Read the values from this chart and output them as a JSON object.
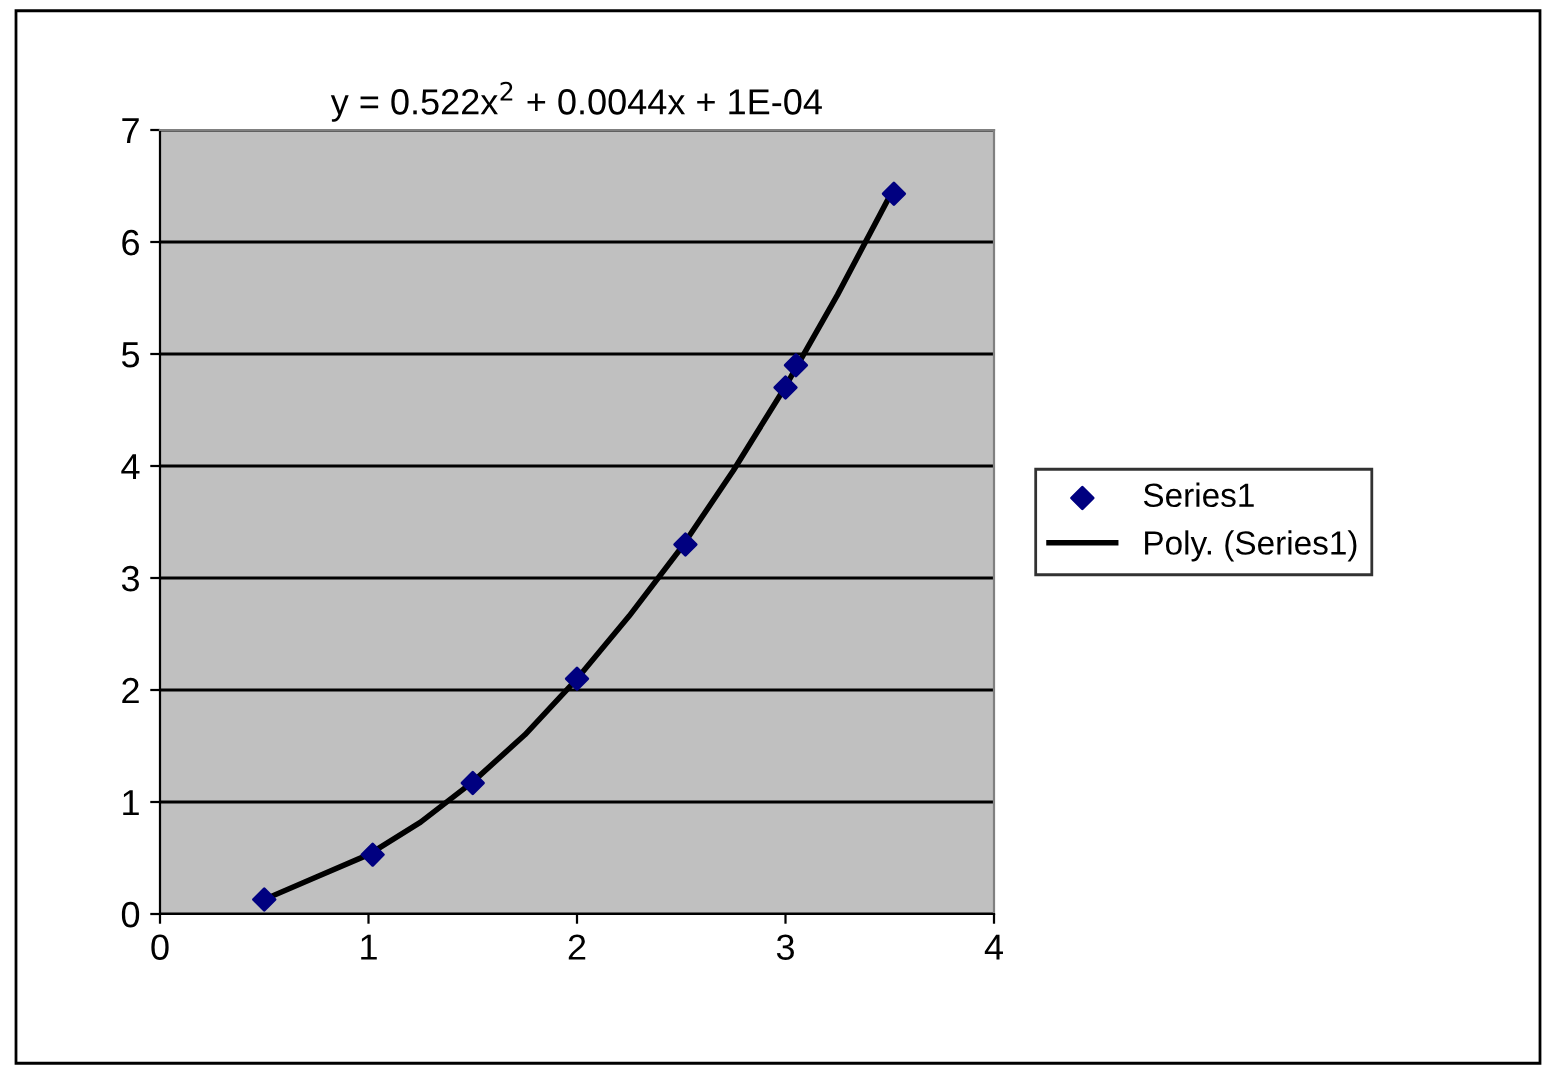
{
  "chart_data": {
    "type": "scatter",
    "annotations": [
      "y = 0.522x$^{2}$ + 0.0044x + 1E-04"
    ],
    "series": [
      {
        "name": "Series1",
        "color": "#000080",
        "marker": "diamond",
        "x": [
          0.5,
          1.02,
          1.5,
          2.0,
          2.52,
          3.0,
          3.05,
          3.52
        ],
        "values": [
          0.13,
          0.53,
          1.17,
          2.1,
          3.3,
          4.7,
          4.9,
          6.43
        ]
      },
      {
        "name": "Poly. (Series1)",
        "type": "line",
        "color": "#000000",
        "line_style": "solid",
        "x": [
          0.5,
          0.75,
          1.0,
          1.25,
          1.5,
          1.75,
          2.0,
          2.25,
          2.5,
          2.75,
          3.0,
          3.25,
          3.5
        ],
        "values": [
          0.13,
          0.33,
          0.53,
          0.82,
          1.18,
          1.6,
          2.1,
          2.66,
          3.27,
          3.96,
          4.71,
          5.53,
          6.41
        ]
      }
    ],
    "xlim": [
      0,
      4
    ],
    "xticks": [
      0,
      1,
      2,
      3,
      4
    ],
    "ylim": [
      0,
      7
    ],
    "yticks": [
      0,
      1,
      2,
      3,
      4,
      5,
      6,
      7
    ],
    "grid": "y",
    "legend": "right"
  }
}
